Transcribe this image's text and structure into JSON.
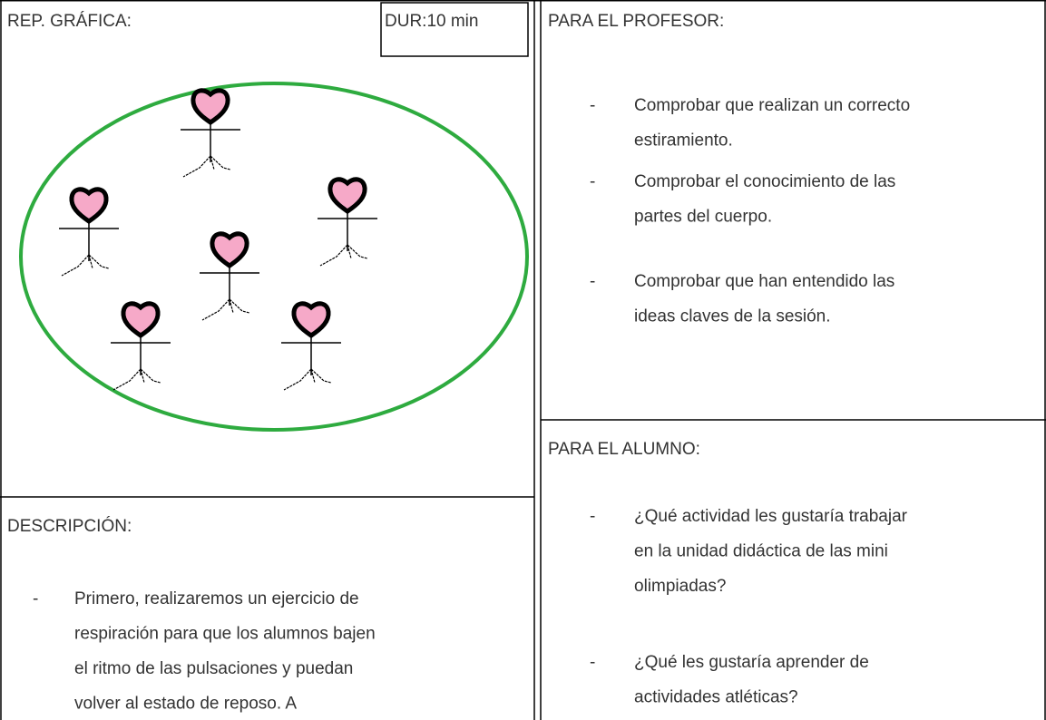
{
  "left": {
    "graphic_label": "REP. GRÁFICA:",
    "duration": "DUR:10 min",
    "description_label": "DESCRIPCIÓN:",
    "description_items": [
      {
        "bullet": "-",
        "lines": [
          "Primero, realizaremos un ejercicio de",
          "respiración para que los alumnos bajen",
          "el ritmo de las pulsaciones y puedan",
          "volver al estado de reposo.  A"
        ]
      }
    ]
  },
  "right": {
    "teacher_label": "PARA EL PROFESOR:",
    "teacher_items": [
      {
        "bullet": "-",
        "lines": [
          "Comprobar que realizan un correcto",
          "estiramiento."
        ]
      },
      {
        "bullet": "-",
        "lines": [
          "Comprobar el conocimiento de las",
          "partes del cuerpo."
        ]
      },
      {
        "bullet": "-",
        "lines": [
          "Comprobar que han entendido las",
          "ideas claves de la sesión."
        ]
      }
    ],
    "student_label": "PARA EL ALUMNO:",
    "student_items": [
      {
        "bullet": "-",
        "lines": [
          "¿Qué actividad les gustaría trabajar",
          "en la unidad didáctica de las mini",
          "olimpiadas?"
        ]
      },
      {
        "bullet": "-",
        "lines": [
          "¿Qué les gustaría aprender de",
          "actividades atléticas?"
        ]
      }
    ]
  }
}
